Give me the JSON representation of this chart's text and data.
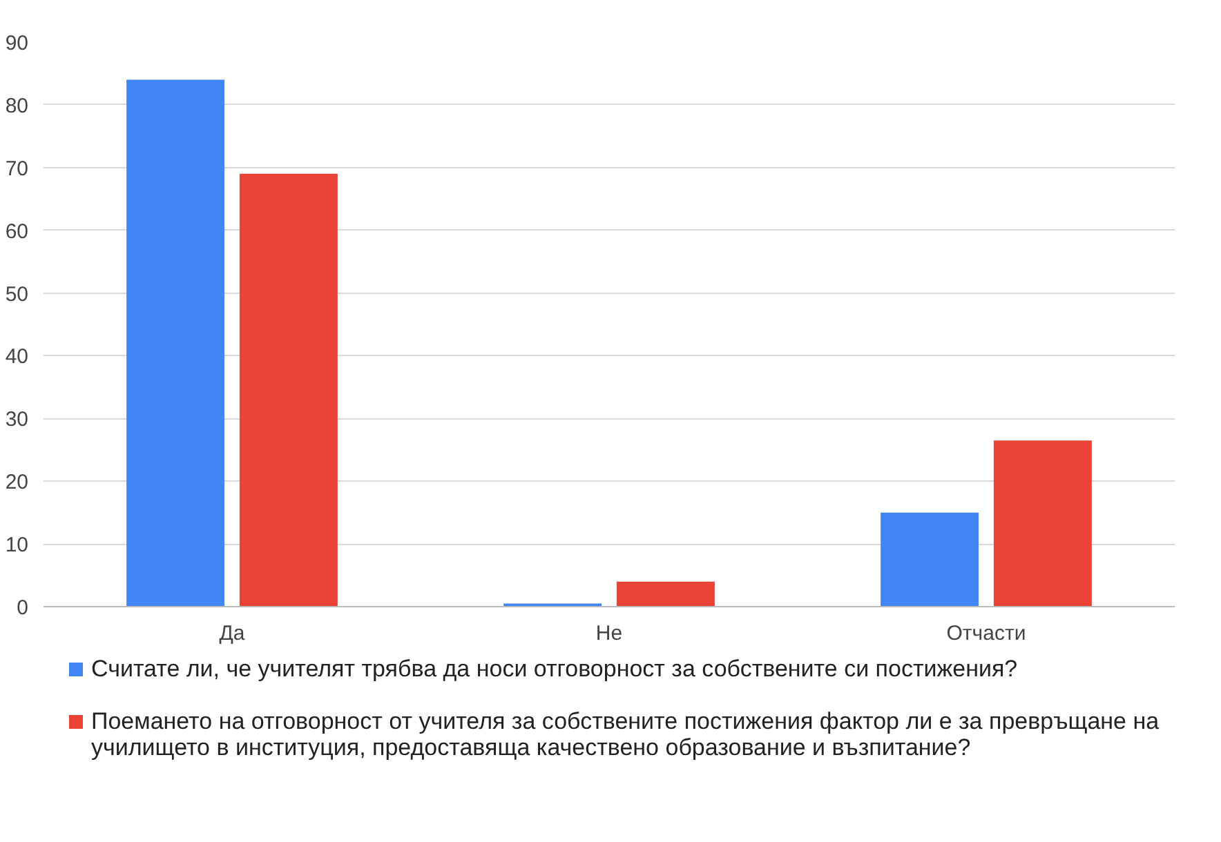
{
  "chart_data": {
    "type": "bar",
    "categories": [
      "Да",
      "Не",
      "Отчасти"
    ],
    "series": [
      {
        "name": "Считате ли, че учителят  трябва да носи отговорност за собствените си постижения?",
        "color": "#4285f4",
        "values": [
          84,
          0.5,
          15
        ]
      },
      {
        "name": "Поемането  на отговорност от учителя за собствените постижения фактор ли е за превръщане на училището в институция, предоставяща качествено образование и възпитание?",
        "color": "#ea4335",
        "values": [
          69,
          4,
          26.5
        ]
      }
    ],
    "ylim": [
      0,
      90
    ],
    "yticks": [
      0,
      10,
      20,
      30,
      40,
      50,
      60,
      70,
      80,
      90
    ],
    "grid": "y",
    "legend": "bottom"
  }
}
